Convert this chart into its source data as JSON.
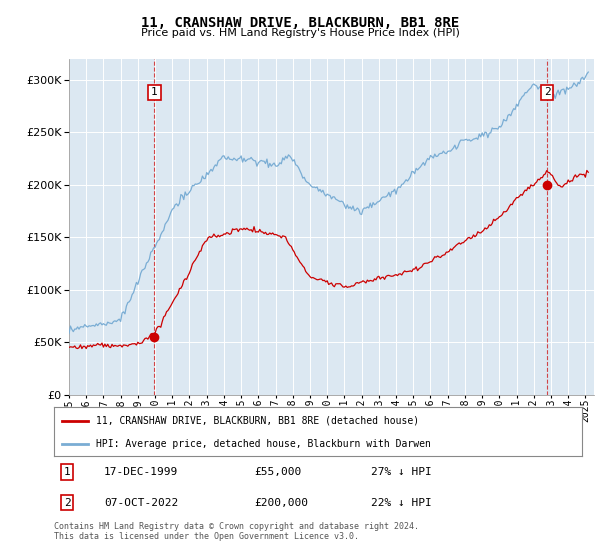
{
  "title": "11, CRANSHAW DRIVE, BLACKBURN, BB1 8RE",
  "subtitle": "Price paid vs. HM Land Registry's House Price Index (HPI)",
  "legend_line1": "11, CRANSHAW DRIVE, BLACKBURN, BB1 8RE (detached house)",
  "legend_line2": "HPI: Average price, detached house, Blackburn with Darwen",
  "footnote": "Contains HM Land Registry data © Crown copyright and database right 2024.\nThis data is licensed under the Open Government Licence v3.0.",
  "table_rows": [
    {
      "num": "1",
      "date": "17-DEC-1999",
      "price": "£55,000",
      "note": "27% ↓ HPI"
    },
    {
      "num": "2",
      "date": "07-OCT-2022",
      "price": "£200,000",
      "note": "22% ↓ HPI"
    }
  ],
  "sale1_x": 1999.96,
  "sale1_y": 55000,
  "sale2_x": 2022.77,
  "sale2_y": 200000,
  "hpi_color": "#7aadd4",
  "price_color": "#cc0000",
  "vline_color": "#cc0000",
  "plot_bg": "#dce8f2",
  "grid_color": "#ffffff",
  "ylim": [
    0,
    320000
  ],
  "xlim_start": 1995.0,
  "xlim_end": 2025.5,
  "yticks": [
    0,
    50000,
    100000,
    150000,
    200000,
    250000,
    300000
  ],
  "xticks": [
    1995,
    1996,
    1997,
    1998,
    1999,
    2000,
    2001,
    2002,
    2003,
    2004,
    2005,
    2006,
    2007,
    2008,
    2009,
    2010,
    2011,
    2012,
    2013,
    2014,
    2015,
    2016,
    2017,
    2018,
    2019,
    2020,
    2021,
    2022,
    2023,
    2024,
    2025
  ]
}
